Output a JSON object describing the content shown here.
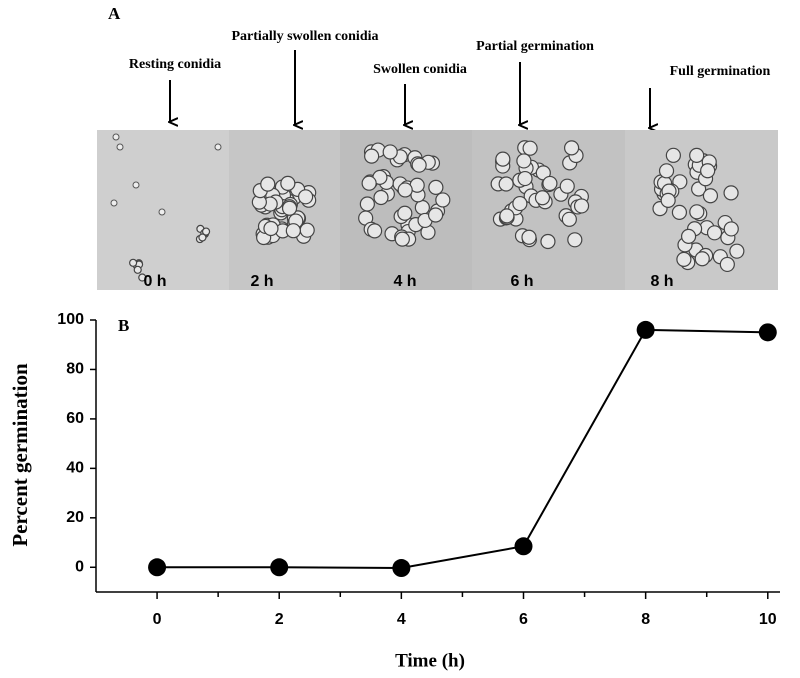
{
  "panel_a": {
    "label": "A",
    "annotations": [
      "Resting conidia",
      "Partially swollen conidia",
      "Swollen conidia",
      "Partial germination",
      "Full germination"
    ],
    "micrographs": [
      "0 h",
      "2 h",
      "4 h",
      "6 h",
      "8 h"
    ]
  },
  "chart_data": {
    "type": "line",
    "panel_label": "B",
    "x_label": "Time (h)",
    "y_label": "Percent germination",
    "x": [
      0,
      2,
      4,
      6,
      8,
      10
    ],
    "series": [
      {
        "name": "Percent germination",
        "color": "#000000",
        "values": [
          0,
          0,
          -0.3,
          8.5,
          96,
          95
        ]
      }
    ],
    "xlim": [
      -1,
      10.2
    ],
    "ylim": [
      -10,
      100
    ],
    "xticks": [
      0,
      2,
      4,
      6,
      8,
      10
    ],
    "xminorticks": [
      1,
      3,
      5,
      7,
      9
    ],
    "yticks": [
      0,
      20,
      40,
      60,
      80,
      100
    ],
    "grid": false
  }
}
